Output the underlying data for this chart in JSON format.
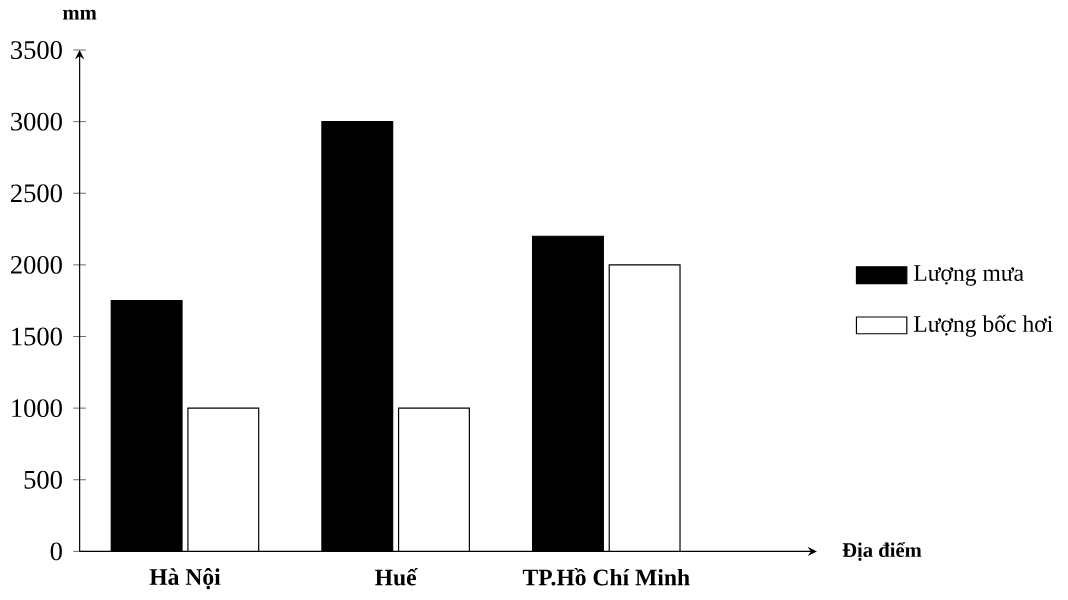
{
  "chart_data": {
    "type": "bar",
    "xlabel": "Địa điểm",
    "ylabel": "mm",
    "categories": [
      "Hà Nội",
      "Huế",
      "TP.Hồ Chí Minh"
    ],
    "series": [
      {
        "name": "Lượng mưa",
        "color": "#000000",
        "values": [
          1750,
          3000,
          2200
        ]
      },
      {
        "name": "Lượng bốc hơi",
        "color": "#ffffff",
        "values": [
          1000,
          1000,
          2000
        ]
      }
    ],
    "ylim": [
      0,
      3500
    ],
    "yticks": [
      0,
      500,
      1000,
      1500,
      2000,
      2500,
      3000,
      3500
    ],
    "legend": "right",
    "grid": false
  }
}
